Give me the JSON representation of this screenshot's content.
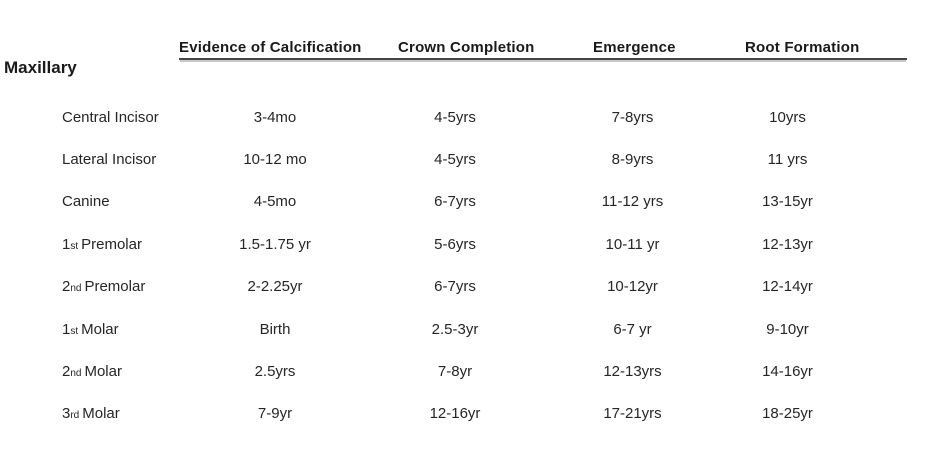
{
  "group_label": "Maxillary",
  "columns": [
    "Evidence of Calcification",
    "Crown Completion",
    "Emergence",
    "Root Formation"
  ],
  "rows": [
    {
      "prefix": "",
      "ordinal": "",
      "name": "Central Incisor",
      "calcification": "3-4mo",
      "crown": "4-5yrs",
      "emergence": "7-8yrs",
      "root": "10yrs"
    },
    {
      "prefix": "",
      "ordinal": "",
      "name": "Lateral Incisor",
      "calcification": "10-12 mo",
      "crown": "4-5yrs",
      "emergence": "8-9yrs",
      "root": "11 yrs"
    },
    {
      "prefix": "",
      "ordinal": "",
      "name": "Canine",
      "calcification": "4-5mo",
      "crown": "6-7yrs",
      "emergence": "11-12 yrs",
      "root": "13-15yr"
    },
    {
      "prefix": "1",
      "ordinal": "st",
      "name": "Premolar",
      "calcification": "1.5-1.75 yr",
      "crown": "5-6yrs",
      "emergence": "10-11 yr",
      "root": "12-13yr"
    },
    {
      "prefix": "2",
      "ordinal": "nd",
      "name": "Premolar",
      "calcification": "2-2.25yr",
      "crown": "6-7yrs",
      "emergence": "10-12yr",
      "root": "12-14yr"
    },
    {
      "prefix": "1",
      "ordinal": "st",
      "name": "Molar",
      "calcification": "Birth",
      "crown": "2.5-3yr",
      "emergence": "6-7 yr",
      "root": "9-10yr"
    },
    {
      "prefix": "2",
      "ordinal": "nd",
      "name": "Molar",
      "calcification": "2.5yrs",
      "crown": "7-8yr",
      "emergence": "12-13yrs",
      "root": "14-16yr"
    },
    {
      "prefix": "3",
      "ordinal": "rd",
      "name": "Molar",
      "calcification": "7-9yr",
      "crown": "12-16yr",
      "emergence": "17-21yrs",
      "root": "18-25yr"
    }
  ],
  "colors": {
    "text": "#262626",
    "heading": "#1a1a1a",
    "underline": "#454545",
    "background": "#ffffff"
  }
}
